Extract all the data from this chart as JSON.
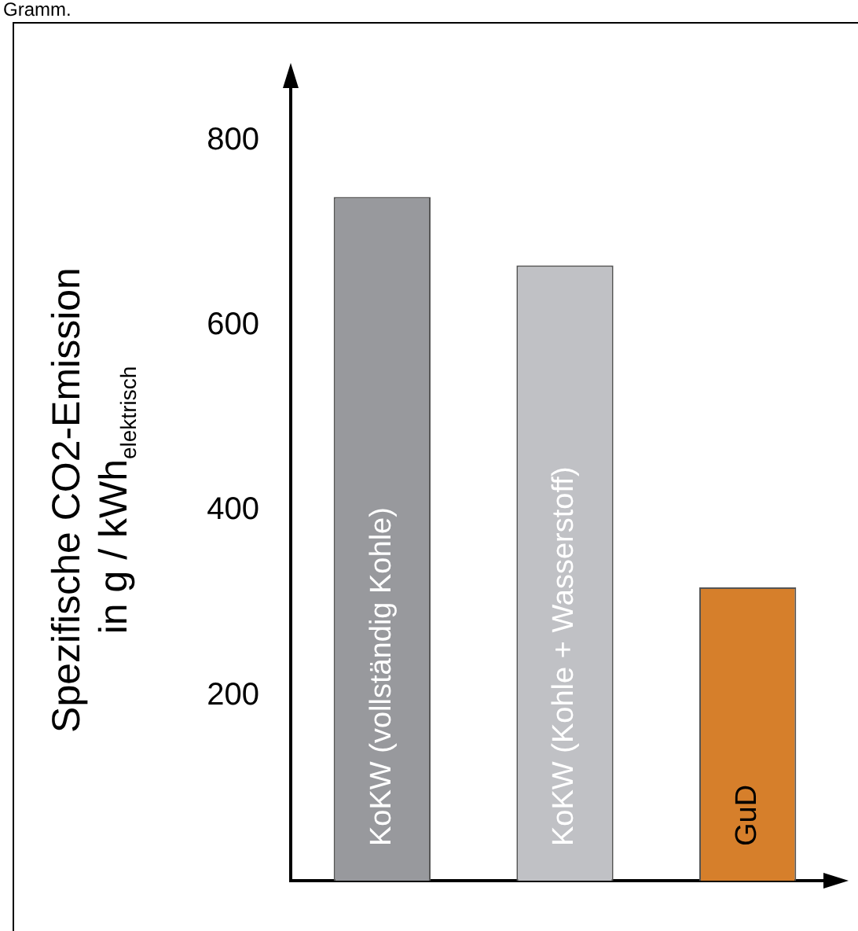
{
  "chart_data": {
    "type": "bar",
    "categories": [
      "KoKW (vollständig Kohle)",
      "KoKW (Kohle + Wasserstoff)",
      "GuD"
    ],
    "values": [
      739,
      665,
      317
    ],
    "colors": [
      "#98999d",
      "#c0c1c5",
      "#d67f2b"
    ],
    "ylabel": "Spezifische CO2-Emission\nin g / kWh$_{elektrisch}$",
    "ylim": [
      0,
      860
    ],
    "yticks": [
      200,
      400,
      600,
      800
    ],
    "annotations": [
      "Gramm."
    ]
  }
}
